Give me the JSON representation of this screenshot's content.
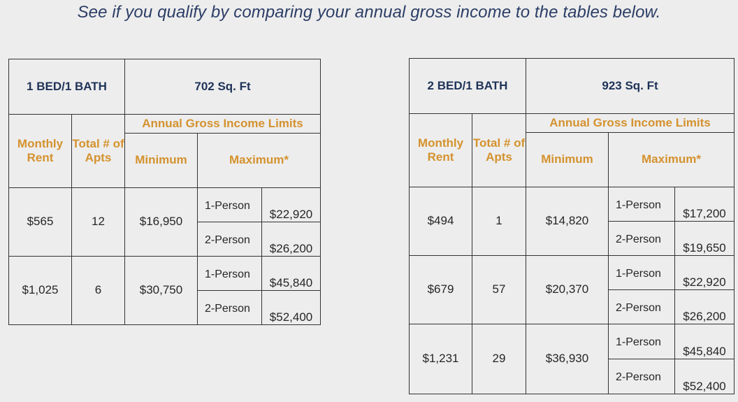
{
  "headline": "See if you qualify by comparing your annual gross income to the tables below.",
  "labels": {
    "monthly_rent": "Monthly Rent",
    "total_apts": "Total # of Apts",
    "income_limits": "Annual Gross Income Limits",
    "minimum": "Minimum",
    "maximum": "Maximum*",
    "one_person": "1-Person",
    "two_person": "2-Person"
  },
  "tables": [
    {
      "unit_type": "1 BED/1 BATH",
      "sq_ft": "702 Sq. Ft",
      "rows": [
        {
          "rent": "$565",
          "apts": "12",
          "minimum": "$16,950",
          "max_1": "$22,920",
          "max_2": "$26,200"
        },
        {
          "rent": "$1,025",
          "apts": "6",
          "minimum": "$30,750",
          "max_1": "$45,840",
          "max_2": "$52,400"
        }
      ]
    },
    {
      "unit_type": "2 BED/1 BATH",
      "sq_ft": "923 Sq. Ft",
      "rows": [
        {
          "rent": "$494",
          "apts": "1",
          "minimum": "$14,820",
          "max_1": "$17,200",
          "max_2": "$19,650"
        },
        {
          "rent": "$679",
          "apts": "57",
          "minimum": "$20,370",
          "max_1": "$22,920",
          "max_2": "$26,200"
        },
        {
          "rent": "$1,231",
          "apts": "29",
          "minimum": "$36,930",
          "max_1": "$45,840",
          "max_2": "$52,400"
        }
      ]
    }
  ]
}
